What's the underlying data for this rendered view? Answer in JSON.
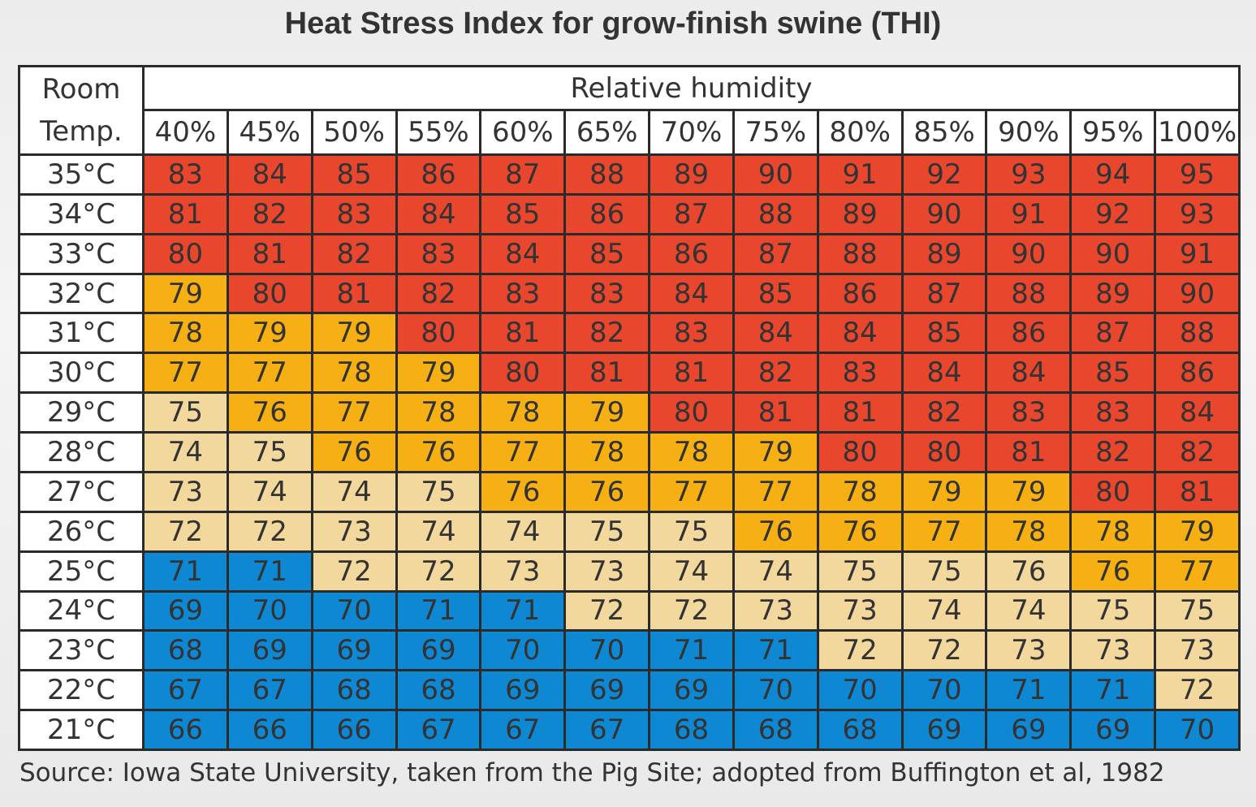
{
  "title": "Heat Stress Index for grow-finish swine (THI)",
  "source": "Source: Iowa State University, taken from the Pig Site; adopted from Buffington et al, 1982",
  "colors": {
    "red": "#e8472e",
    "orange": "#f7b014",
    "tan": "#f3d89e",
    "blue": "#0f88d4",
    "header_bg": "#ffffff",
    "border": "#2a2a2a"
  },
  "chart_data": {
    "type": "heatmap",
    "corner_label_line1": "Room",
    "corner_label_line2": "Temp.",
    "column_group_label": "Relative humidity",
    "columns": [
      "40%",
      "45%",
      "50%",
      "55%",
      "60%",
      "65%",
      "70%",
      "75%",
      "80%",
      "85%",
      "90%",
      "95%",
      "100%"
    ],
    "rows": [
      "35°C",
      "34°C",
      "33°C",
      "32°C",
      "31°C",
      "30°C",
      "29°C",
      "28°C",
      "27°C",
      "26°C",
      "25°C",
      "24°C",
      "23°C",
      "22°C",
      "21°C"
    ],
    "values": [
      [
        83,
        84,
        85,
        86,
        87,
        88,
        89,
        90,
        91,
        92,
        93,
        94,
        95
      ],
      [
        81,
        82,
        83,
        84,
        85,
        86,
        87,
        88,
        89,
        90,
        91,
        92,
        93
      ],
      [
        80,
        81,
        82,
        83,
        84,
        85,
        86,
        87,
        88,
        89,
        90,
        90,
        91
      ],
      [
        79,
        80,
        81,
        82,
        83,
        83,
        84,
        85,
        86,
        87,
        88,
        89,
        90
      ],
      [
        78,
        79,
        79,
        80,
        81,
        82,
        83,
        84,
        84,
        85,
        86,
        87,
        88
      ],
      [
        77,
        77,
        78,
        79,
        80,
        81,
        81,
        82,
        83,
        84,
        84,
        85,
        86
      ],
      [
        75,
        76,
        77,
        78,
        78,
        79,
        80,
        81,
        81,
        82,
        83,
        83,
        84
      ],
      [
        74,
        75,
        76,
        76,
        77,
        78,
        78,
        79,
        80,
        80,
        81,
        82,
        82
      ],
      [
        73,
        74,
        74,
        75,
        76,
        76,
        77,
        77,
        78,
        79,
        79,
        80,
        81
      ],
      [
        72,
        72,
        73,
        74,
        74,
        75,
        75,
        76,
        76,
        77,
        78,
        78,
        79
      ],
      [
        71,
        71,
        72,
        72,
        73,
        73,
        74,
        74,
        75,
        75,
        76,
        76,
        77
      ],
      [
        69,
        70,
        70,
        71,
        71,
        72,
        72,
        73,
        73,
        74,
        74,
        75,
        75
      ],
      [
        68,
        69,
        69,
        69,
        70,
        70,
        71,
        71,
        72,
        72,
        73,
        73,
        73
      ],
      [
        67,
        67,
        68,
        68,
        69,
        69,
        69,
        70,
        70,
        70,
        71,
        71,
        72
      ],
      [
        66,
        66,
        66,
        67,
        67,
        67,
        68,
        68,
        68,
        69,
        69,
        69,
        70
      ]
    ],
    "cell_colors": [
      [
        "red",
        "red",
        "red",
        "red",
        "red",
        "red",
        "red",
        "red",
        "red",
        "red",
        "red",
        "red",
        "red"
      ],
      [
        "red",
        "red",
        "red",
        "red",
        "red",
        "red",
        "red",
        "red",
        "red",
        "red",
        "red",
        "red",
        "red"
      ],
      [
        "red",
        "red",
        "red",
        "red",
        "red",
        "red",
        "red",
        "red",
        "red",
        "red",
        "red",
        "red",
        "red"
      ],
      [
        "orange",
        "red",
        "red",
        "red",
        "red",
        "red",
        "red",
        "red",
        "red",
        "red",
        "red",
        "red",
        "red"
      ],
      [
        "orange",
        "orange",
        "orange",
        "red",
        "red",
        "red",
        "red",
        "red",
        "red",
        "red",
        "red",
        "red",
        "red"
      ],
      [
        "orange",
        "orange",
        "orange",
        "orange",
        "red",
        "red",
        "red",
        "red",
        "red",
        "red",
        "red",
        "red",
        "red"
      ],
      [
        "tan",
        "orange",
        "orange",
        "orange",
        "orange",
        "orange",
        "red",
        "red",
        "red",
        "red",
        "red",
        "red",
        "red"
      ],
      [
        "tan",
        "tan",
        "orange",
        "orange",
        "orange",
        "orange",
        "orange",
        "orange",
        "red",
        "red",
        "red",
        "red",
        "red"
      ],
      [
        "tan",
        "tan",
        "tan",
        "tan",
        "orange",
        "orange",
        "orange",
        "orange",
        "orange",
        "orange",
        "orange",
        "red",
        "red"
      ],
      [
        "tan",
        "tan",
        "tan",
        "tan",
        "tan",
        "tan",
        "tan",
        "orange",
        "orange",
        "orange",
        "orange",
        "orange",
        "orange"
      ],
      [
        "blue",
        "blue",
        "tan",
        "tan",
        "tan",
        "tan",
        "tan",
        "tan",
        "tan",
        "tan",
        "tan",
        "orange",
        "orange"
      ],
      [
        "blue",
        "blue",
        "blue",
        "blue",
        "blue",
        "tan",
        "tan",
        "tan",
        "tan",
        "tan",
        "tan",
        "tan",
        "tan"
      ],
      [
        "blue",
        "blue",
        "blue",
        "blue",
        "blue",
        "blue",
        "blue",
        "blue",
        "tan",
        "tan",
        "tan",
        "tan",
        "tan"
      ],
      [
        "blue",
        "blue",
        "blue",
        "blue",
        "blue",
        "blue",
        "blue",
        "blue",
        "blue",
        "blue",
        "blue",
        "blue",
        "tan"
      ],
      [
        "blue",
        "blue",
        "blue",
        "blue",
        "blue",
        "blue",
        "blue",
        "blue",
        "blue",
        "blue",
        "blue",
        "blue",
        "blue"
      ]
    ]
  }
}
